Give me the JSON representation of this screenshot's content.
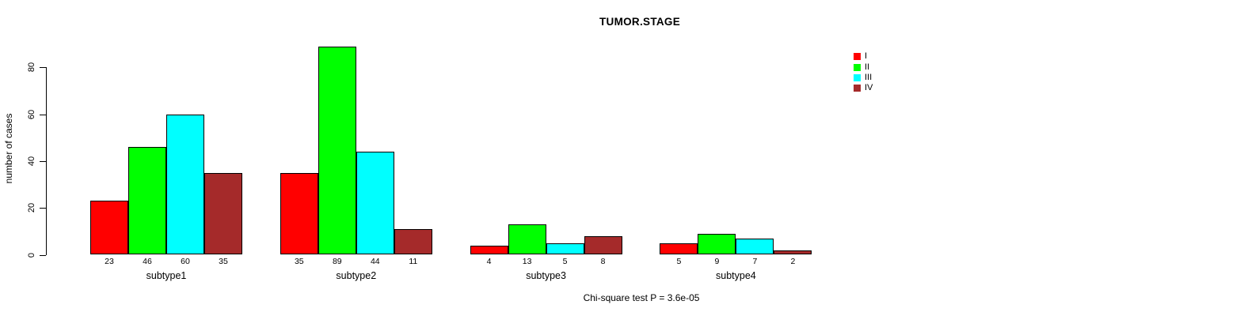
{
  "title": "TUMOR.STAGE",
  "footer": "Chi-square test P = 3.6e-05",
  "chart_data": {
    "type": "bar",
    "title": "TUMOR.STAGE",
    "xlabel": "",
    "ylabel": "number of cases",
    "categories": [
      "subtype1",
      "subtype2",
      "subtype3",
      "subtype4"
    ],
    "series": [
      {
        "name": "I",
        "color": "#FF0000",
        "values": [
          23,
          35,
          4,
          5
        ]
      },
      {
        "name": "II",
        "color": "#00FF00",
        "values": [
          46,
          89,
          13,
          9
        ]
      },
      {
        "name": "III",
        "color": "#00FFFF",
        "values": [
          60,
          44,
          5,
          7
        ]
      },
      {
        "name": "IV",
        "color": "#A52A2A",
        "values": [
          35,
          11,
          8,
          2
        ]
      }
    ],
    "yticks": [
      0,
      20,
      40,
      60,
      80
    ],
    "ylim": [
      0,
      89
    ],
    "grid": false,
    "legend_position": "top-right",
    "bar_labels_shown": true,
    "annotation": "Chi-square test P = 3.6e-05"
  }
}
